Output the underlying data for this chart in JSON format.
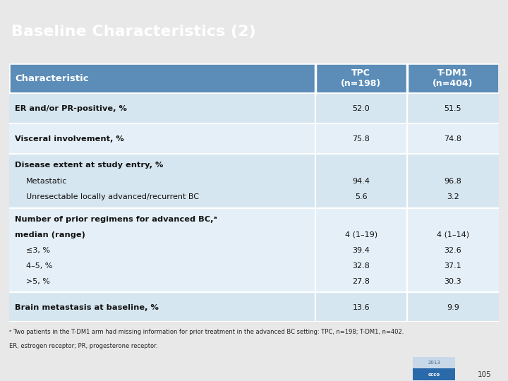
{
  "title": "Baseline Characteristics (2)",
  "title_bg": "#4d7fa6",
  "title_color": "#ffffff",
  "header_bg": "#5b8db8",
  "header_color": "#ffffff",
  "col1_header": "Characteristic",
  "col2_header": "TPC\n(n=198)",
  "col3_header": "T-DM1\n(n=404)",
  "bg_alt1": "#ccdde8",
  "bg_alt2": "#deeaf3",
  "outer_bg": "#e8e8e8",
  "rows": [
    {
      "label_lines": [
        "ER and/or PR-positive, %"
      ],
      "label_bold": [
        true
      ],
      "label_indent": [
        0
      ],
      "tpc_lines": [
        "52.0"
      ],
      "tdm1_lines": [
        "51.5"
      ],
      "bg": "#d6e6f0"
    },
    {
      "label_lines": [
        "Visceral involvement, %"
      ],
      "label_bold": [
        true
      ],
      "label_indent": [
        0
      ],
      "tpc_lines": [
        "75.8"
      ],
      "tdm1_lines": [
        "74.8"
      ],
      "bg": "#e4eff7"
    },
    {
      "label_lines": [
        "Disease extent at study entry, %",
        "Metastatic",
        "Unresectable locally advanced/recurrent BC"
      ],
      "label_bold": [
        true,
        false,
        false
      ],
      "label_indent": [
        0,
        1,
        1
      ],
      "tpc_lines": [
        "",
        "94.4",
        "5.6"
      ],
      "tdm1_lines": [
        "",
        "96.8",
        "3.2"
      ],
      "bg": "#d6e6f0"
    },
    {
      "label_lines": [
        "Number of prior regimens for advanced BC,ᵃ",
        "median (range)",
        "≤3, %",
        "4–5, %",
        ">5, %"
      ],
      "label_bold": [
        true,
        true,
        false,
        false,
        false
      ],
      "label_indent": [
        0,
        0,
        1,
        1,
        1
      ],
      "tpc_lines": [
        "",
        "4 (1–19)",
        "39.4",
        "32.8",
        "27.8"
      ],
      "tdm1_lines": [
        "",
        "4 (1–14)",
        "32.6",
        "37.1",
        "30.3"
      ],
      "bg": "#e4eff7"
    },
    {
      "label_lines": [
        "Brain metastasis at baseline, %"
      ],
      "label_bold": [
        true
      ],
      "label_indent": [
        0
      ],
      "tpc_lines": [
        "13.6"
      ],
      "tdm1_lines": [
        "9.9"
      ],
      "bg": "#d6e6f0"
    }
  ],
  "footnote1": "ᵃ Two patients in the T-DM1 arm had missing information for prior treatment in the advanced BC setting: TPC, n=198; T-DM1, n=402.",
  "footnote2": "ER, estrogen receptor; PR, progesterone receptor.",
  "page_num": "105",
  "logo_2013_bg": "#c8d8e8",
  "logo_ccco_bg": "#2a6aaa"
}
